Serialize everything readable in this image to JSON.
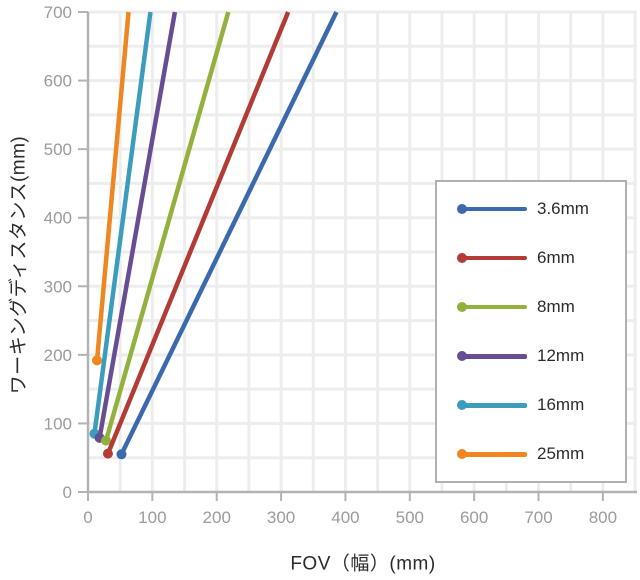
{
  "chart_data": {
    "type": "line",
    "title": "",
    "xlabel": "FOV（幅）(mm)",
    "ylabel": "ワーキングディスタンス(mm)",
    "xlim": [
      0,
      853
    ],
    "ylim": [
      0,
      700
    ],
    "x_ticks": [
      0,
      100,
      200,
      300,
      400,
      500,
      600,
      700,
      800
    ],
    "y_ticks": [
      0,
      100,
      200,
      300,
      400,
      500,
      600,
      700
    ],
    "grid": true,
    "grid_step": 50,
    "legend_position": "middle-right",
    "series": [
      {
        "name": "3.6mm",
        "color": "#3C69AE",
        "points": [
          [
            52,
            55
          ],
          [
            386,
            700
          ]
        ]
      },
      {
        "name": "6mm",
        "color": "#B23C35",
        "points": [
          [
            31,
            56
          ],
          [
            311,
            700
          ]
        ]
      },
      {
        "name": "8mm",
        "color": "#93B13D",
        "points": [
          [
            28,
            75
          ],
          [
            218,
            700
          ]
        ]
      },
      {
        "name": "12mm",
        "color": "#674D92",
        "points": [
          [
            18,
            79
          ],
          [
            135,
            700
          ]
        ]
      },
      {
        "name": "16mm",
        "color": "#3B9CBD",
        "points": [
          [
            10,
            85
          ],
          [
            97,
            700
          ]
        ]
      },
      {
        "name": "25mm",
        "color": "#F0861F",
        "points": [
          [
            14,
            192
          ],
          [
            63,
            700
          ]
        ]
      }
    ],
    "palette": {
      "background": "#FFFFFF",
      "gridline": "#EDEDED",
      "axis_line": "#B3B3B3",
      "tick_label": "#9B9B9B",
      "axis_title": "#2B2B2B",
      "legend_border": "#B0B0B0"
    }
  }
}
